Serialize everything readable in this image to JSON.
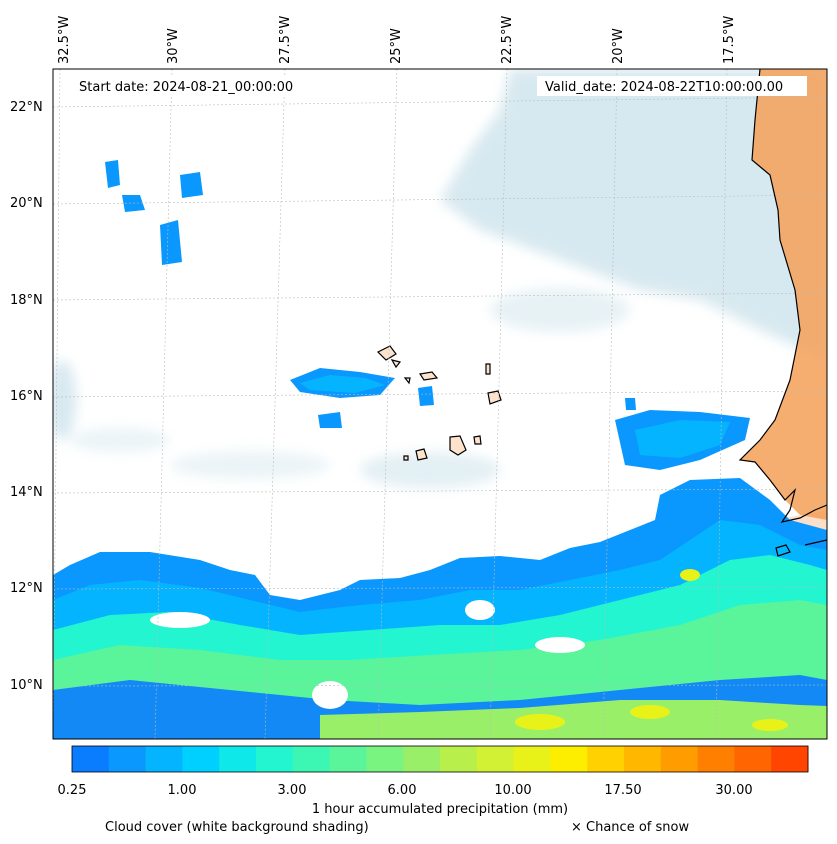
{
  "header": {
    "start_date": "Start date: 2024-08-21_00:00:00",
    "valid_date": "Valid_date: 2024-08-22T10:00:00.00"
  },
  "axes": {
    "lon_labels": [
      "32.5°W",
      "30°W",
      "27.5°W",
      "25°W",
      "22.5°W",
      "20°W",
      "17.5°W"
    ],
    "lat_labels": [
      "22°N",
      "20°N",
      "18°N",
      "16°N",
      "14°N",
      "12°N",
      "10°N"
    ]
  },
  "colorbar": {
    "tick_labels": [
      "0.25",
      "1.00",
      "3.00",
      "6.00",
      "10.00",
      "17.50",
      "30.00"
    ],
    "title": "1 hour accumulated precipitation (mm)",
    "colors": [
      "#0a7dff",
      "#0a98ff",
      "#05b4ff",
      "#00d0ff",
      "#0fe8e8",
      "#22f5cf",
      "#3cf6b4",
      "#5af59a",
      "#7af480",
      "#99f068",
      "#b8ef4a",
      "#d2f034",
      "#e9f218",
      "#fdee00",
      "#ffd100",
      "#ffb700",
      "#ff9c00",
      "#ff8000",
      "#ff6500",
      "#ff4500"
    ]
  },
  "footer": {
    "cloud_label": "Cloud cover (white background shading)",
    "snow_label": "× Chance of snow"
  },
  "palette": {
    "cloud": "#b7d7e3",
    "land": "#f4a460",
    "coast": "#000000"
  }
}
